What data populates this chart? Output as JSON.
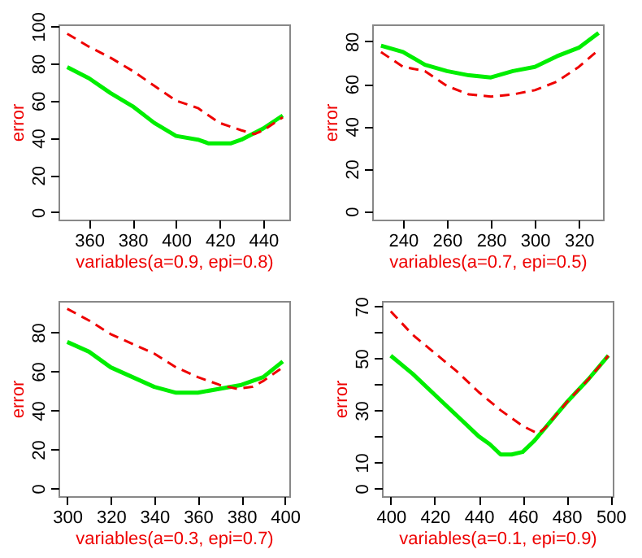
{
  "chart_data": [
    {
      "type": "line",
      "xlabel": "variables(a=0.9, epi=0.8)",
      "ylabel": "error",
      "xlim": [
        346,
        452
      ],
      "ylim": [
        -4,
        101
      ],
      "xticks": [
        360,
        380,
        400,
        420,
        440
      ],
      "yticks": [
        0,
        20,
        40,
        60,
        80,
        100
      ],
      "series": [
        {
          "color": "#00ee00",
          "line_style": "solid",
          "x": [
            350,
            360,
            370,
            380,
            390,
            400,
            410,
            415,
            420,
            425,
            430,
            440,
            449
          ],
          "values": [
            78,
            72,
            64,
            57,
            48,
            41,
            39,
            37,
            37,
            37,
            39,
            45,
            52
          ]
        },
        {
          "color": "#ee0000",
          "line_style": "dashed",
          "x": [
            350,
            360,
            370,
            380,
            390,
            400,
            410,
            420,
            430,
            436,
            440,
            449
          ],
          "values": [
            96,
            89,
            83,
            76,
            68,
            60,
            56,
            48,
            44,
            42,
            44,
            51
          ]
        }
      ]
    },
    {
      "type": "line",
      "xlabel": "variables(a=0.7, epi=0.5)",
      "ylabel": "error",
      "xlim": [
        226,
        331
      ],
      "ylim": [
        -4,
        88
      ],
      "xticks": [
        240,
        260,
        280,
        300,
        320
      ],
      "yticks": [
        0,
        20,
        40,
        60,
        80
      ],
      "series": [
        {
          "color": "#00ee00",
          "line_style": "solid",
          "x": [
            230,
            240,
            250,
            260,
            270,
            280,
            290,
            300,
            310,
            320,
            329
          ],
          "values": [
            78,
            75,
            69,
            66,
            64,
            63,
            66,
            68,
            73,
            77,
            84
          ]
        },
        {
          "color": "#ee0000",
          "line_style": "dashed",
          "x": [
            230,
            240,
            250,
            260,
            270,
            280,
            290,
            300,
            310,
            320,
            329
          ],
          "values": [
            75,
            68,
            66,
            59,
            55,
            54,
            55,
            57,
            61,
            68,
            76
          ]
        }
      ]
    },
    {
      "type": "line",
      "xlabel": "variables(a=0.3, epi=0.7)",
      "ylabel": "error",
      "xlim": [
        296,
        402
      ],
      "ylim": [
        -4,
        96
      ],
      "xticks": [
        300,
        320,
        340,
        360,
        380,
        400
      ],
      "yticks": [
        0,
        20,
        40,
        60,
        80
      ],
      "series": [
        {
          "color": "#00ee00",
          "line_style": "solid",
          "x": [
            300,
            310,
            320,
            330,
            340,
            350,
            360,
            370,
            380,
            390,
            399
          ],
          "values": [
            75,
            70,
            62,
            57,
            52,
            49,
            49,
            51,
            53,
            57,
            65
          ]
        },
        {
          "color": "#ee0000",
          "line_style": "dashed",
          "x": [
            300,
            310,
            320,
            330,
            340,
            350,
            360,
            370,
            378,
            385,
            390,
            399
          ],
          "values": [
            92,
            86,
            79,
            74,
            69,
            62,
            57,
            53,
            51,
            52,
            55,
            62
          ]
        }
      ]
    },
    {
      "type": "line",
      "xlabel": "variables(a=0.1, epi=0.9)",
      "ylabel": "error",
      "xlim": [
        396,
        501
      ],
      "ylim": [
        -3,
        72
      ],
      "xticks": [
        400,
        420,
        440,
        460,
        480,
        500
      ],
      "yticks": [
        0,
        10,
        {
          "value": 20,
          "label": null
        },
        30,
        {
          "value": 40,
          "label": null
        },
        50,
        {
          "value": 60,
          "label": null
        },
        70
      ],
      "series": [
        {
          "color": "#00ee00",
          "line_style": "solid",
          "x": [
            400,
            410,
            420,
            430,
            440,
            445,
            450,
            455,
            460,
            465,
            470,
            480,
            490,
            499
          ],
          "values": [
            51,
            44,
            36,
            28,
            20,
            17,
            13,
            13,
            14,
            18,
            23,
            33,
            42,
            51
          ]
        },
        {
          "color": "#ee0000",
          "line_style": "dashed",
          "x": [
            400,
            410,
            420,
            430,
            440,
            450,
            460,
            467,
            470,
            480,
            490,
            499
          ],
          "values": [
            68,
            59,
            52,
            45,
            37,
            30,
            24,
            21,
            23,
            33,
            42,
            51
          ]
        }
      ]
    }
  ]
}
